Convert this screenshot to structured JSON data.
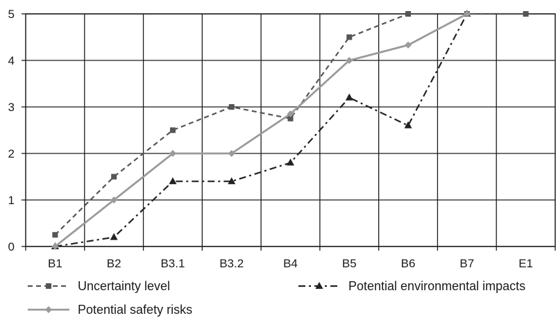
{
  "chart_data": {
    "type": "line",
    "categories": [
      "B1",
      "B2",
      "B3.1",
      "B3.2",
      "B4",
      "B5",
      "B6",
      "B7",
      "E1"
    ],
    "ylim": [
      0,
      5
    ],
    "yticks": [
      0,
      1,
      2,
      3,
      4,
      5
    ],
    "grid": true,
    "legend_position": "bottom",
    "series": [
      {
        "name": "Uncertainty level",
        "values": [
          0.25,
          1.5,
          2.5,
          3.0,
          2.75,
          4.5,
          5.0,
          5.0,
          5.0
        ],
        "color": "#555555",
        "line_style": "dashed",
        "marker": "square"
      },
      {
        "name": "Potential environmental impacts",
        "values": [
          0.0,
          0.2,
          1.4,
          1.4,
          1.8,
          3.2,
          2.6,
          5.0,
          null
        ],
        "color": "#222222",
        "line_style": "dash-dot",
        "marker": "triangle"
      },
      {
        "name": "Potential safety risks",
        "values": [
          0.0,
          1.0,
          2.0,
          2.0,
          2.85,
          4.0,
          4.33,
          5.0,
          null
        ],
        "color": "#9a9a9a",
        "line_style": "solid",
        "marker": "diamond"
      }
    ]
  }
}
